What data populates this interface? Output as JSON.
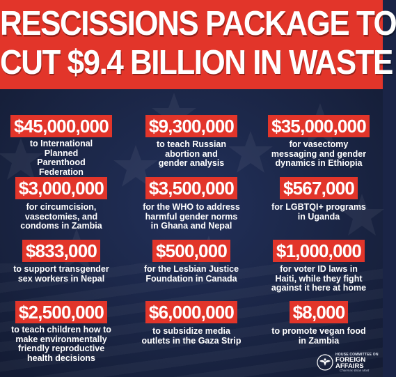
{
  "header": {
    "title_line1": "RESCISSIONS PACKAGE TO",
    "title_line2": "CUT $9.4 BILLION IN WASTE"
  },
  "items": [
    {
      "amount": "$45,000,000",
      "desc": "to International\nPlanned\nParenthood\nFederation"
    },
    {
      "amount": "$9,300,000",
      "desc": "to teach Russian\nabortion and\ngender analysis"
    },
    {
      "amount": "$35,000,000",
      "desc": "for vasectomy\nmessaging and gender\ndynamics in Ethiopia"
    },
    {
      "amount": "$3,000,000",
      "desc": "for circumcision,\nvasectomies, and\ncondoms in Zambia"
    },
    {
      "amount": "$3,500,000",
      "desc": "for the WHO to address\nharmful gender norms\nin Ghana and Nepal"
    },
    {
      "amount": "$567,000",
      "desc": "for LGBTQI+ programs\nin Uganda"
    },
    {
      "amount": "$833,000",
      "desc": "to support transgender\nsex workers in Nepal"
    },
    {
      "amount": "$500,000",
      "desc": "for the Lesbian Justice\nFoundation in Canada"
    },
    {
      "amount": "$1,000,000",
      "desc": "for voter ID laws in\nHaiti, while they fight\nagainst it here at home"
    },
    {
      "amount": "$2,500,000",
      "desc": "to teach children how to\nmake environmentally\nfriendly reproductive\nhealth decisions"
    },
    {
      "amount": "$6,000,000",
      "desc": "to subsidize media\noutlets in the Gaza Strip"
    },
    {
      "amount": "$8,000",
      "desc": "to promote vegan food\nin Zambia"
    }
  ],
  "logo": {
    "org_small": "HOUSE COMMITTEE ON",
    "org_line1": "FOREIGN",
    "org_line2": "AFFAIRS",
    "chair": "Chairman Brian Mast"
  },
  "colors": {
    "accent_red": "#e2352a",
    "navy": "#1a2446",
    "text": "#ffffff"
  }
}
